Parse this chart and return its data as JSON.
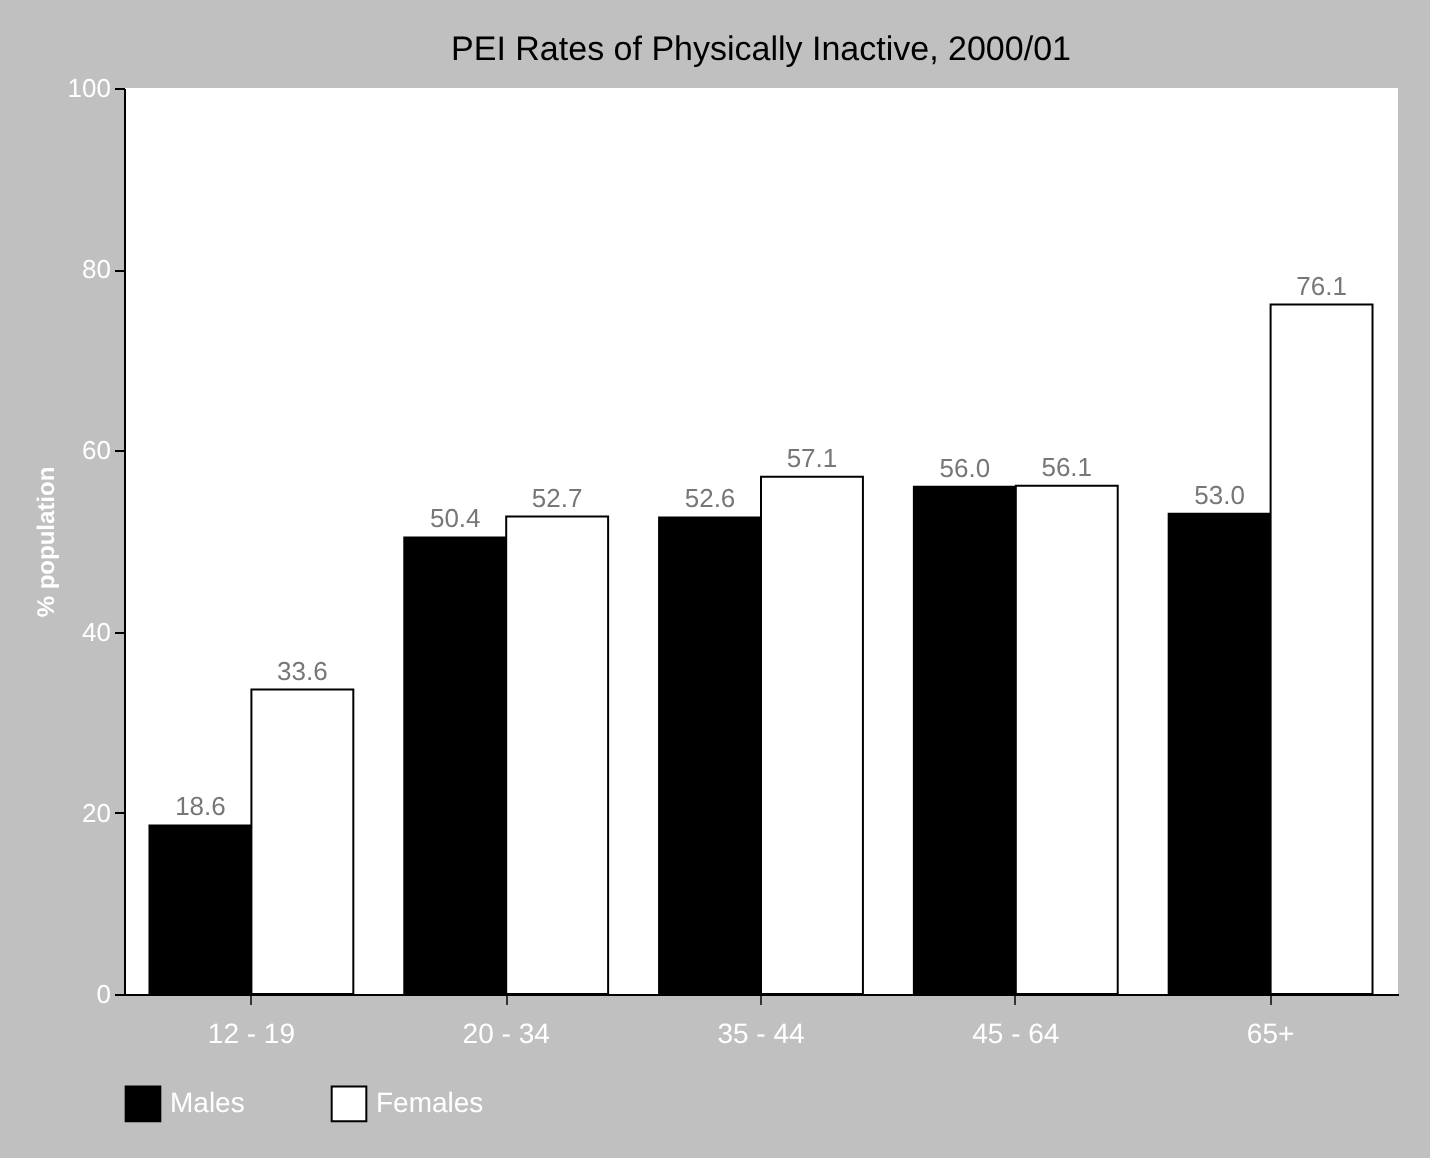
{
  "chart_data": {
    "type": "bar",
    "title": "PEI Rates of Physically Inactive, 2000/01",
    "ylabel": "% population",
    "categories": [
      "12 - 19",
      "20 - 34",
      "35 - 44",
      "45 - 64",
      "65+"
    ],
    "series": [
      {
        "name": "Males",
        "color": "#000000",
        "values": [
          18.6,
          50.4,
          52.6,
          56,
          53
        ],
        "value_labels": [
          "18.6",
          "50.4",
          "52.6",
          "56.0",
          "53.0"
        ]
      },
      {
        "name": "Females",
        "color": "#ffffff",
        "values": [
          33.6,
          52.7,
          57.1,
          56.1,
          76.1
        ],
        "value_labels": [
          "33.6",
          "52.7",
          "57.1",
          "56.1",
          "76.1"
        ]
      }
    ],
    "ylim": [
      0,
      100
    ],
    "yticks": [
      0,
      20,
      40,
      60,
      80,
      100
    ],
    "grid": false,
    "legend": "bottom"
  }
}
